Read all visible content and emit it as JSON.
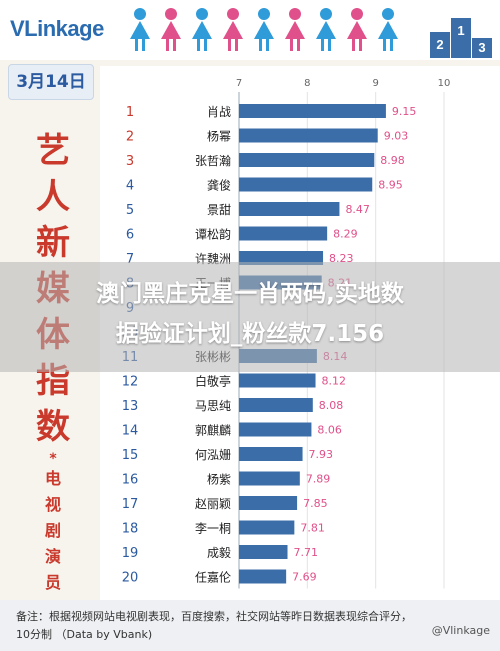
{
  "brand": {
    "logo": "VLinkage",
    "accent": "#2b6cb0",
    "title_color": "#c9392c"
  },
  "header": {
    "date": "3月14日",
    "podium": [
      "2",
      "1",
      "3"
    ]
  },
  "title": {
    "vertical_main": [
      "艺",
      "人",
      "新",
      "媒",
      "体",
      "指",
      "数"
    ],
    "vertical_sub": [
      "电",
      "视",
      "剧",
      "演",
      "员"
    ]
  },
  "chart_data": {
    "type": "bar",
    "orientation": "horizontal",
    "xlim": [
      7,
      10
    ],
    "xticks": [
      7,
      8,
      9,
      10
    ],
    "grid": true,
    "categories": [
      "肖战",
      "杨幂",
      "张哲瀚",
      "龚俊",
      "景甜",
      "谭松韵",
      "许魏洲",
      "王一博",
      "",
      "",
      "张彬彬",
      "白敬亭",
      "马思纯",
      "郭麒麟",
      "何泓姗",
      "杨紫",
      "赵丽颖",
      "李一桐",
      "成毅",
      "任嘉伦"
    ],
    "ranks": [
      1,
      2,
      3,
      4,
      5,
      6,
      7,
      8,
      9,
      10,
      11,
      12,
      13,
      14,
      15,
      16,
      17,
      18,
      19,
      20
    ],
    "values": [
      9.15,
      9.03,
      8.98,
      8.95,
      8.47,
      8.29,
      8.23,
      8.21,
      null,
      null,
      8.14,
      8.12,
      8.08,
      8.06,
      7.93,
      7.89,
      7.85,
      7.81,
      7.71,
      7.69
    ],
    "bar_color": "#3b6ea8",
    "label_color": "#e0508a",
    "rank_color_top3": "#c9392c",
    "rank_color": "#2b5aa0"
  },
  "footer": {
    "note_line1": "备注：根据视频网站电视剧表现，百度搜索，社交网站等昨日数据表现综合评分，",
    "note_line2": "10分制 （Data by Vbank)",
    "credit": "@Vlinkage"
  },
  "watermark": {
    "line1": "澳门黑庄克星一肖两码,实地数",
    "line2": "据验证计划_粉丝款7.156"
  }
}
